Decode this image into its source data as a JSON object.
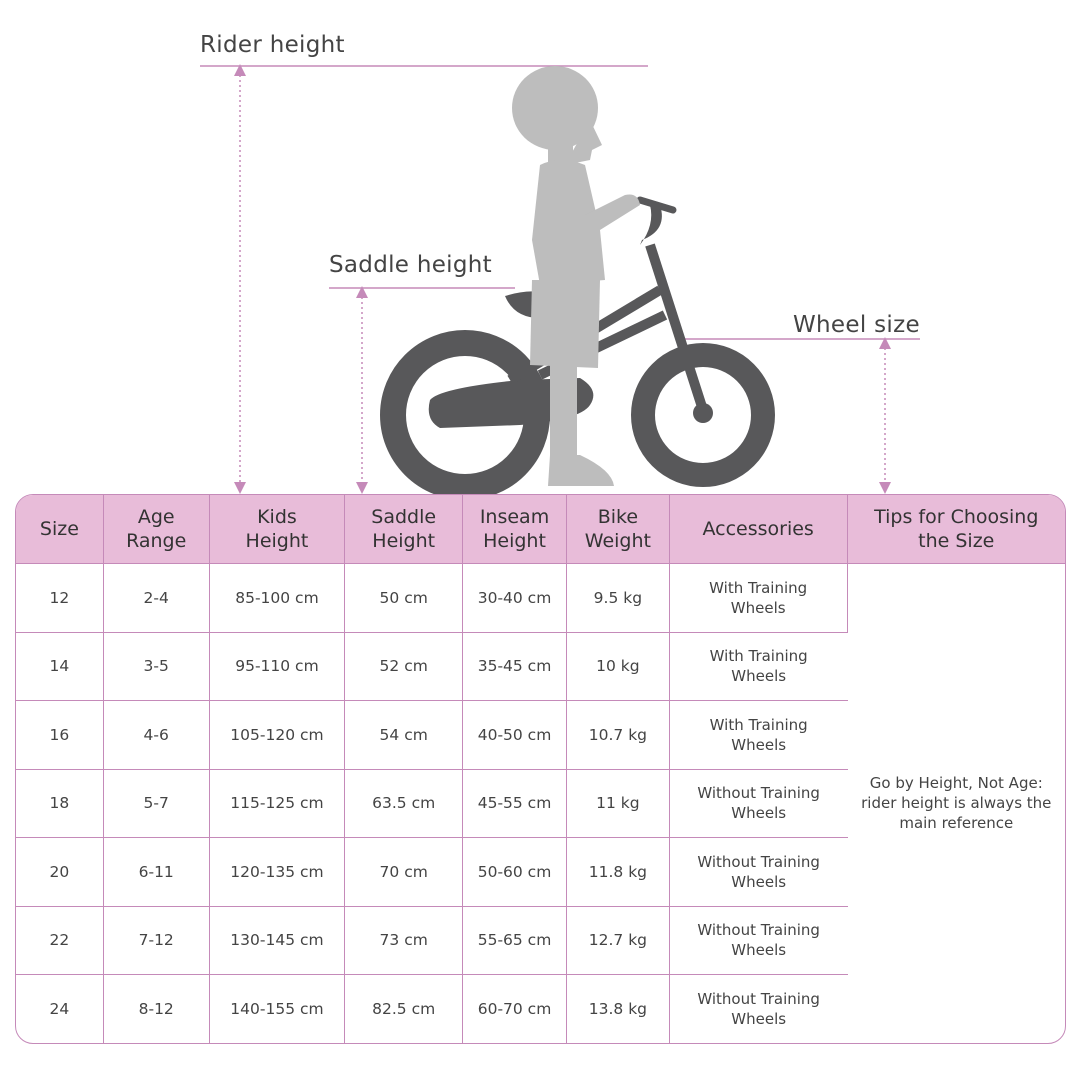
{
  "labels": {
    "rider_height": "Rider height",
    "saddle_height": "Saddle height",
    "wheel_size": "Wheel size"
  },
  "colors": {
    "accent": "#c58ab9",
    "header_bg": "#e8bcd9",
    "bike": "#58585a",
    "rider": "#bdbdbd"
  },
  "icons": {
    "illustration": "child-with-bike-silhouette",
    "measure": "dotted-double-arrow"
  },
  "table": {
    "headers": [
      "Size",
      "Age\nRange",
      "Kids\nHeight",
      "Saddle\nHeight",
      "Inseam\nHeight",
      "Bike\nWeight",
      "Accessories",
      "Tips for Choosing\nthe Size"
    ],
    "rows": [
      [
        "12",
        "2-4",
        "85-100 cm",
        "50 cm",
        "30-40 cm",
        "9.5 kg",
        "With Training\nWheels"
      ],
      [
        "14",
        "3-5",
        "95-110 cm",
        "52 cm",
        "35-45 cm",
        "10 kg",
        "With Training\nWheels"
      ],
      [
        "16",
        "4-6",
        "105-120 cm",
        "54 cm",
        "40-50 cm",
        "10.7 kg",
        "With Training\nWheels"
      ],
      [
        "18",
        "5-7",
        "115-125 cm",
        "63.5 cm",
        "45-55 cm",
        "11 kg",
        "Without Training\nWheels"
      ],
      [
        "20",
        "6-11",
        "120-135 cm",
        "70 cm",
        "50-60 cm",
        "11.8 kg",
        "Without Training\nWheels"
      ],
      [
        "22",
        "7-12",
        "130-145 cm",
        "73 cm",
        "55-65 cm",
        "12.7 kg",
        "Without Training\nWheels"
      ],
      [
        "24",
        "8-12",
        "140-155 cm",
        "82.5 cm",
        "60-70 cm",
        "13.8 kg",
        "Without Training\nWheels"
      ]
    ],
    "tip": "Go by Height, Not Age:\nrider height is always the\nmain reference"
  }
}
